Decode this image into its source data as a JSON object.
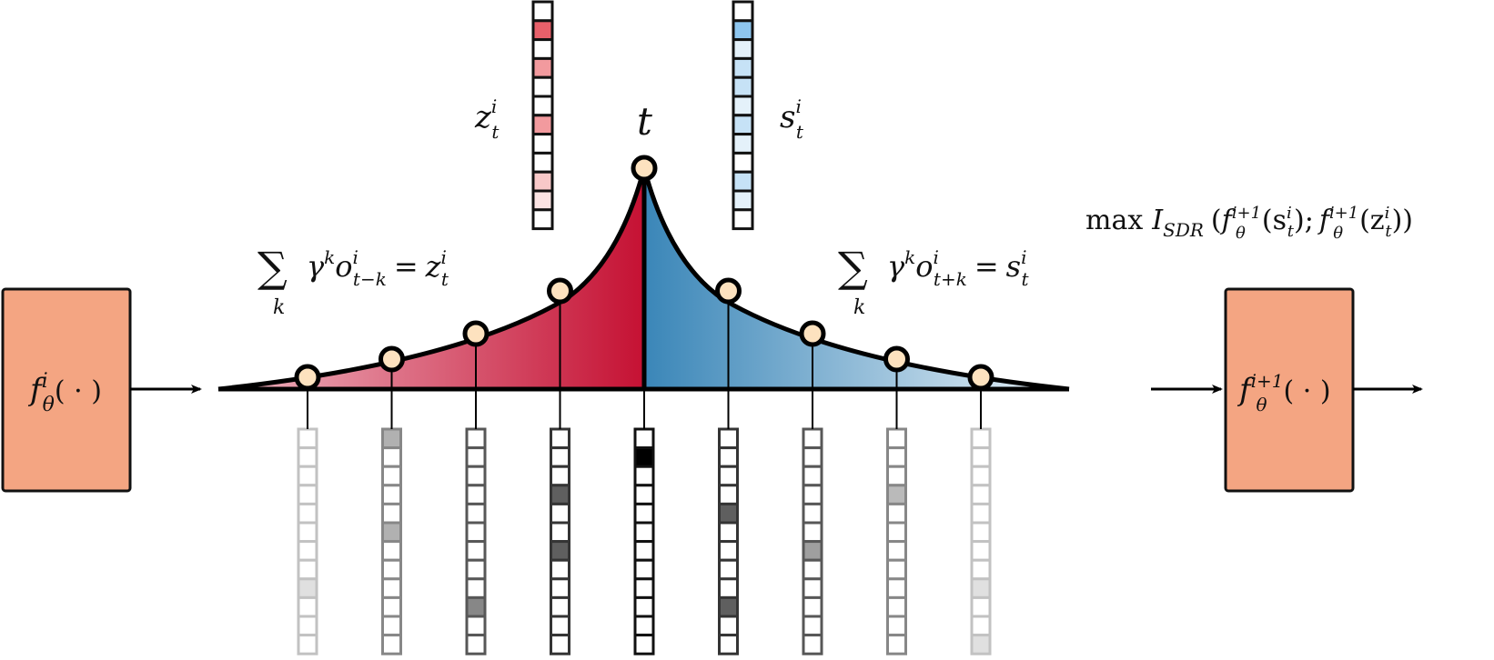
{
  "encoder_left": {
    "label_f": "f",
    "label_sup": "i",
    "label_sub": "θ",
    "label_arg": "( · )"
  },
  "encoder_right": {
    "label_f": "f",
    "label_sup": "i+1",
    "label_sub": "θ",
    "label_arg": "( · )"
  },
  "peak_label": "t",
  "z_label": {
    "base": "z",
    "sup": "i",
    "sub": "t"
  },
  "s_label": {
    "base": "s",
    "sup": "i",
    "sub": "t"
  },
  "eq_left": {
    "sum": "∑",
    "sum_sub": "k",
    "gamma": "γ",
    "gamma_sup": "k",
    "o": "o",
    "o_sup": "i",
    "o_sub": "t−k",
    "equals": "=",
    "rhs": "z",
    "rhs_sup": "i",
    "rhs_sub": "t"
  },
  "eq_right": {
    "sum": "∑",
    "sum_sub": "k",
    "gamma": "γ",
    "gamma_sup": "k",
    "o": "o",
    "o_sup": "i",
    "o_sub": "t+k",
    "equals": "=",
    "rhs": "s",
    "rhs_sup": "i",
    "rhs_sub": "t"
  },
  "objective": {
    "max": "max",
    "I": "I",
    "I_sub": "SDR",
    "open": "(",
    "f1": "f",
    "f1_sup": "i+1",
    "f1_sub": "θ",
    "arg1": "(s",
    "arg1_sup": "i",
    "arg1_sub": "t",
    "sep": ");",
    "f2": "f",
    "f2_sup": "i+1",
    "f2_sub": "θ",
    "arg2": "(z",
    "arg2_sup": "i",
    "arg2_sub": "t",
    "close": "))"
  },
  "colors": {
    "encoder_fill": "#f4a582",
    "past_dark": "#c51133",
    "past_light": "#efb8c4",
    "future_dark": "#3a86b8",
    "future_light": "#eaf2f8",
    "node_fill": "#fde2bf",
    "z_vector_colors": [
      "#ffffff",
      "#e8606a",
      "#ffffff",
      "#f29a9e",
      "#ffffff",
      "#ffffff",
      "#f29a9e",
      "#ffffff",
      "#ffffff",
      "#f8c8c8",
      "#fbe3e3",
      "#ffffff"
    ],
    "s_vector_colors": [
      "#ffffff",
      "#8ec6ef",
      "#e4f1fa",
      "#c6e2f6",
      "#c6e2f6",
      "#e4f1fa",
      "#c6e2f6",
      "#e4f1fa",
      "#ffffff",
      "#c6e2f6",
      "#e4f1fa",
      "#ffffff"
    ]
  },
  "observation_vectors": [
    {
      "offset": -4,
      "opacity": 0.25,
      "filled": {
        "8": "#888888"
      }
    },
    {
      "offset": -3,
      "opacity": 0.5,
      "filled": {
        "0": "#666666",
        "5": "#666666"
      }
    },
    {
      "offset": -2,
      "opacity": 0.7,
      "filled": {
        "9": "#555555"
      }
    },
    {
      "offset": -1,
      "opacity": 0.85,
      "filled": {
        "3": "#444444",
        "6": "#444444"
      }
    },
    {
      "offset": 0,
      "opacity": 1.0,
      "filled": {
        "1": "#000000"
      }
    },
    {
      "offset": 1,
      "opacity": 0.85,
      "filled": {
        "4": "#444444",
        "9": "#444444"
      }
    },
    {
      "offset": 2,
      "opacity": 0.7,
      "filled": {
        "6": "#777777"
      }
    },
    {
      "offset": 3,
      "opacity": 0.5,
      "filled": {
        "3": "#777777"
      }
    },
    {
      "offset": 4,
      "opacity": 0.25,
      "filled": {
        "8": "#888888",
        "11": "#888888"
      }
    }
  ]
}
